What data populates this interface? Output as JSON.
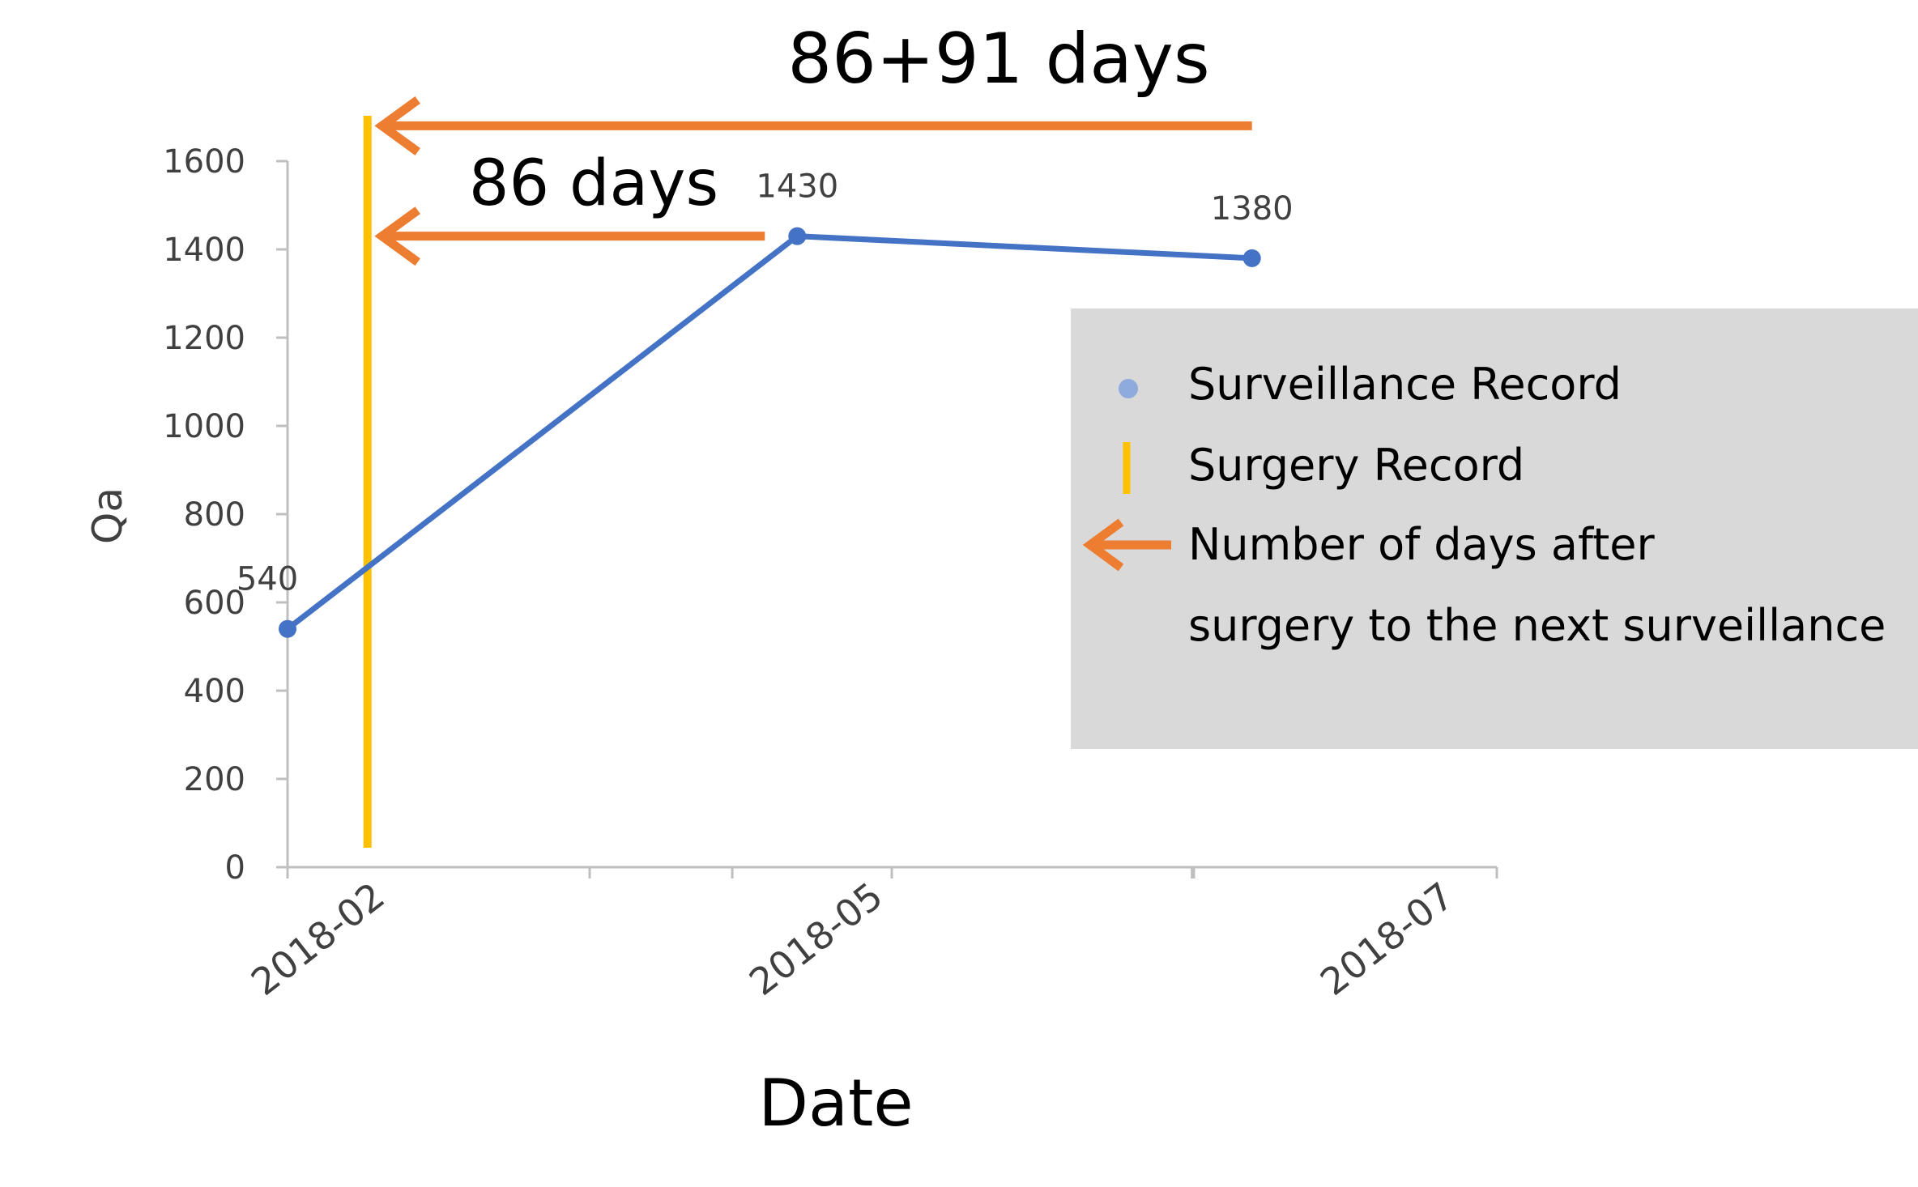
{
  "chart_data": {
    "type": "line",
    "xlabel": "Date",
    "ylabel": "Qa",
    "ylim": [
      0,
      1600
    ],
    "ytick_values": [
      0,
      200,
      400,
      600,
      800,
      1000,
      1200,
      1400,
      1600
    ],
    "ytick_labels": [
      "0",
      "200",
      "400",
      "600",
      "800",
      "1000",
      "1200",
      "1400",
      "1600"
    ],
    "xtick_labels": [
      "2018-02",
      "2018-05",
      "2018-07"
    ],
    "grid": false,
    "series": [
      {
        "name": "Surveillance Record",
        "color": "#4472C4",
        "x": [
          "2018-02-01",
          "2018-05-14",
          "2018-08-13"
        ],
        "values": [
          540,
          1430,
          1380
        ],
        "data_labels": [
          "540",
          "1430",
          "1380"
        ]
      }
    ],
    "surgery": {
      "name": "Surgery Record",
      "color": "#FFC000",
      "date": "2018-02-17"
    },
    "annotations": [
      {
        "text": "86 days",
        "color": "#ED7D31",
        "from_date": "2018-05-14",
        "to_date": "2018-02-17",
        "at_value": 1430
      },
      {
        "text": "86+91 days",
        "color": "#ED7D31",
        "from_date": "2018-08-13",
        "to_date": "2018-02-17",
        "at_value": 1680
      }
    ],
    "legend": {
      "placement": "right",
      "background": "#D9D9D9",
      "entries": [
        {
          "label": "Surveillance Record",
          "symbol": "dot",
          "color": "#8FAADC"
        },
        {
          "label": "Surgery Record",
          "symbol": "bar",
          "color": "#FFC000"
        },
        {
          "label_lines": [
            "Number of days after",
            "surgery to the next surveillance"
          ],
          "symbol": "arrow",
          "color": "#ED7D31"
        }
      ]
    }
  }
}
